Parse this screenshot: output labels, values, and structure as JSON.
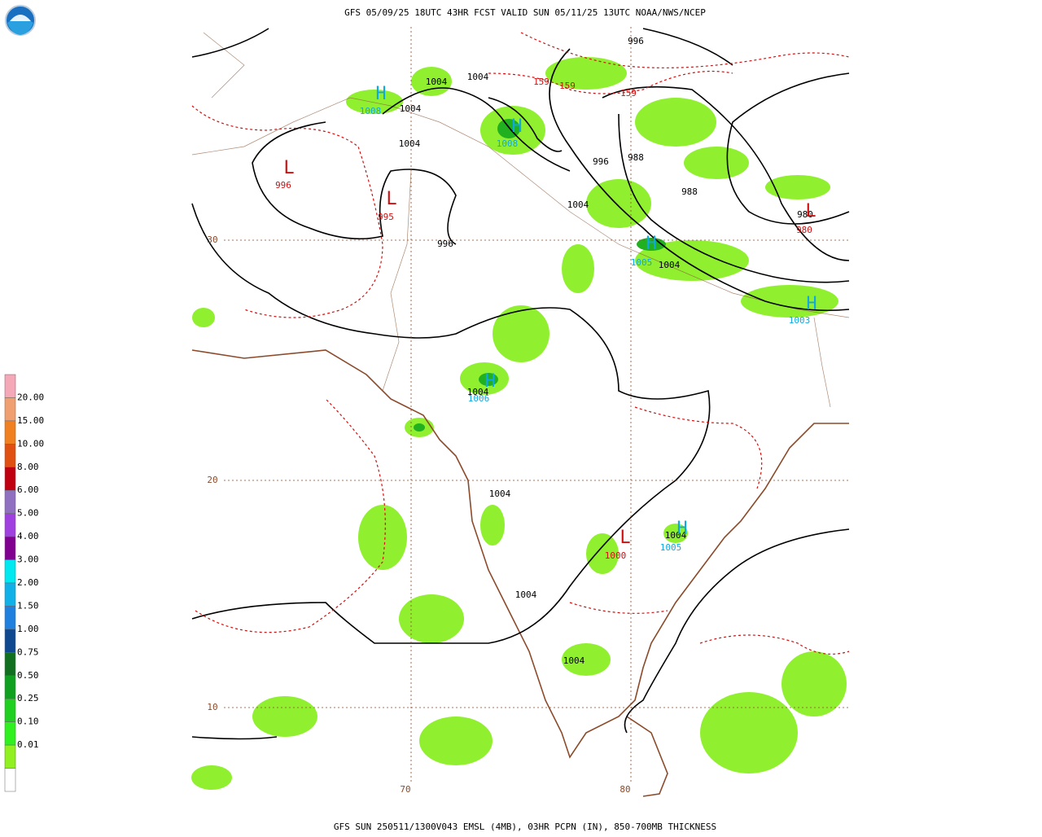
{
  "header": {
    "title": "GFS 05/09/25 18UTC 43HR FCST VALID SUN 05/11/25 13UTC NOAA/NWS/NCEP"
  },
  "footer": {
    "caption": "GFS SUN 250511/1300V043 EMSL (4MB), 03HR PCPN (IN), 850-700MB THICKNESS"
  },
  "legend": {
    "labels": [
      "20.00",
      "15.00",
      "10.00",
      "8.00",
      "6.00",
      "5.00",
      "4.00",
      "3.00",
      "2.00",
      "1.50",
      "1.00",
      "0.75",
      "0.50",
      "0.25",
      "0.10",
      "0.01"
    ]
  },
  "map": {
    "latitude_labels": [
      "30",
      "20",
      "10"
    ],
    "longitude_labels": [
      "70",
      "80"
    ],
    "isobar_labels": [
      "996",
      "1004",
      "1004",
      "1004",
      "1004",
      "996",
      "988",
      "988",
      "1004",
      "996",
      "980",
      "1004",
      "1004",
      "1004",
      "1004",
      "1004",
      "1004"
    ],
    "thickness_labels": [
      "159",
      "159",
      "159"
    ],
    "highs": [
      {
        "symbol": "H",
        "value": "1008"
      },
      {
        "symbol": "H",
        "value": "1008"
      },
      {
        "symbol": "H",
        "value": "1005"
      },
      {
        "symbol": "H",
        "value": "1003"
      },
      {
        "symbol": "H",
        "value": "1006"
      },
      {
        "symbol": "H",
        "value": "1005"
      }
    ],
    "lows": [
      {
        "symbol": "L",
        "value": "996"
      },
      {
        "symbol": "L",
        "value": "995"
      },
      {
        "symbol": "L",
        "value": "980"
      },
      {
        "symbol": "L",
        "value": "1000"
      }
    ]
  }
}
